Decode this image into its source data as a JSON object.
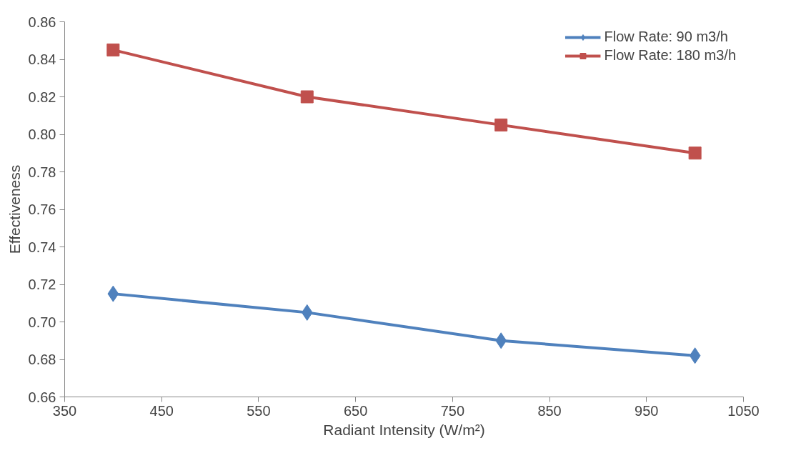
{
  "chart_data": {
    "type": "line",
    "xlabel": "Radiant Intensity (W/m²)",
    "ylabel": "Effectiveness",
    "x": [
      400,
      600,
      800,
      1000
    ],
    "series": [
      {
        "name": "Flow Rate: 90 m3/h",
        "color": "#4f81bd",
        "marker": "diamond",
        "values": [
          0.715,
          0.705,
          0.69,
          0.682
        ]
      },
      {
        "name": "Flow Rate: 180 m3/h",
        "color": "#c0504d",
        "marker": "square",
        "values": [
          0.845,
          0.82,
          0.805,
          0.79
        ]
      }
    ],
    "xlim": [
      350,
      1050
    ],
    "xticks": [
      350,
      450,
      550,
      650,
      750,
      850,
      950,
      1050
    ],
    "ylim": [
      0.66,
      0.86
    ],
    "yticks": [
      0.66,
      0.68,
      {
        "value": 0.7,
        "label": "0.70"
      },
      0.72,
      0.74,
      0.76,
      0.78,
      {
        "value": 0.8,
        "label": "0.80"
      },
      0.82,
      0.84,
      0.86
    ],
    "grid": false,
    "legend": "top right",
    "line_style": "solid"
  }
}
